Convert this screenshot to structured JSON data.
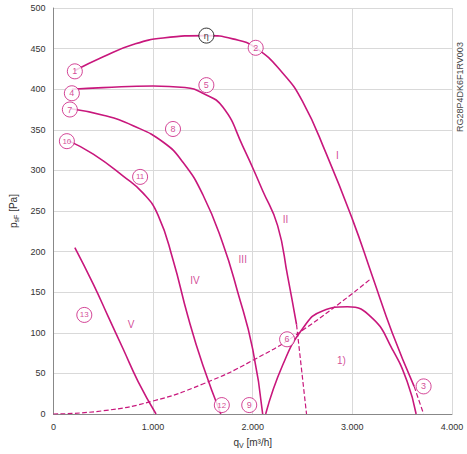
{
  "chart_data": {
    "type": "line",
    "side_text": "RG28P4DK6F1RV003",
    "x_label": {
      "base": "q",
      "sub": "V",
      "unit": "[m³/h]"
    },
    "y_label": {
      "base": "p",
      "sub": "sF",
      "unit": "[Pa]"
    },
    "xlim": [
      0,
      4000
    ],
    "ylim": [
      0,
      500
    ],
    "xticks": [
      0,
      {
        "value": 1000,
        "label": "1.000"
      },
      {
        "value": 2000,
        "label": "2.000"
      },
      {
        "value": 3000,
        "label": "3.000"
      },
      {
        "value": 4000,
        "label": "4.000"
      }
    ],
    "yticks": [
      0,
      50,
      100,
      150,
      200,
      250,
      300,
      350,
      400,
      450,
      500
    ],
    "grid": true,
    "color": "#c8177c",
    "series": [
      {
        "x": [
          215,
          500,
          800,
          1100,
          1535,
          1800,
          2030,
          2300,
          2500,
          2740,
          3000,
          3200,
          3400,
          3620
        ],
        "values": [
          423,
          440,
          455,
          463,
          466,
          462,
          451,
          420,
          385,
          320,
          240,
          170,
          100,
          34
        ],
        "line_style": "solid"
      },
      {
        "x": [
          3620,
          3715
        ],
        "values": [
          34,
          0
        ],
        "line_style": "dashed"
      },
      {
        "x": [
          185,
          500,
          1000,
          1320,
          1500,
          1700,
          1900,
          2100,
          2250,
          2350,
          2440
        ],
        "values": [
          400,
          402,
          404,
          402,
          395,
          378,
          330,
          275,
          232,
          170,
          110
        ],
        "line_style": "solid"
      },
      {
        "x": [
          2440,
          2540
        ],
        "values": [
          110,
          0
        ],
        "line_style": "dashed"
      },
      {
        "x": [
          175,
          500,
          800,
          1100,
          1300,
          1500,
          1700,
          1850,
          2000,
          2100
        ],
        "values": [
          376,
          368,
          355,
          335,
          310,
          270,
          210,
          150,
          80,
          0
        ],
        "line_style": "solid"
      },
      {
        "x": [
          145,
          400,
          700,
          900,
          1050,
          1200,
          1350,
          1500,
          1680
        ],
        "values": [
          337,
          320,
          293,
          272,
          245,
          190,
          120,
          60,
          0
        ],
        "line_style": "solid"
      },
      {
        "x": [
          215,
          400,
          550,
          700,
          850,
          1030
        ],
        "values": [
          205,
          160,
          120,
          80,
          40,
          0
        ],
        "line_style": "solid"
      },
      {
        "x": [
          0,
          500,
          1000,
          1500,
          2000,
          2500,
          3180
        ],
        "values": [
          0,
          4,
          16,
          37,
          66,
          103,
          166
        ],
        "line_style": "dashed"
      },
      {
        "x": [
          2130,
          2300,
          2500,
          2700,
          2950,
          3200,
          3400,
          3550,
          3640
        ],
        "values": [
          0,
          60,
          105,
          127,
          132,
          118,
          80,
          40,
          0
        ],
        "line_style": "solid"
      }
    ],
    "markers": [
      {
        "text": "1",
        "x": 215,
        "y": 422
      },
      {
        "text": "2",
        "x": 2030,
        "y": 451
      },
      {
        "text": "η",
        "x": 1535,
        "y": 466,
        "color": "#000000"
      },
      {
        "text": "3",
        "x": 3715,
        "y": 34
      },
      {
        "text": "4",
        "x": 185,
        "y": 395
      },
      {
        "text": "5",
        "x": 1535,
        "y": 405
      },
      {
        "text": "6",
        "x": 2345,
        "y": 92
      },
      {
        "text": "7",
        "x": 165,
        "y": 375
      },
      {
        "text": "8",
        "x": 1200,
        "y": 351
      },
      {
        "text": "9",
        "x": 1965,
        "y": 11
      },
      {
        "text": "10",
        "x": 135,
        "y": 336
      },
      {
        "text": "11",
        "x": 870,
        "y": 292
      },
      {
        "text": "12",
        "x": 1690,
        "y": 11
      },
      {
        "text": "13",
        "x": 310,
        "y": 122
      }
    ],
    "annotations": [
      {
        "text": "I",
        "x": 2850,
        "y": 318
      },
      {
        "text": "II",
        "x": 2330,
        "y": 240
      },
      {
        "text": "III",
        "x": 1900,
        "y": 190
      },
      {
        "text": "IV",
        "x": 1420,
        "y": 165
      },
      {
        "text": "V",
        "x": 780,
        "y": 110
      },
      {
        "text": "1)",
        "x": 2890,
        "y": 66
      }
    ]
  }
}
